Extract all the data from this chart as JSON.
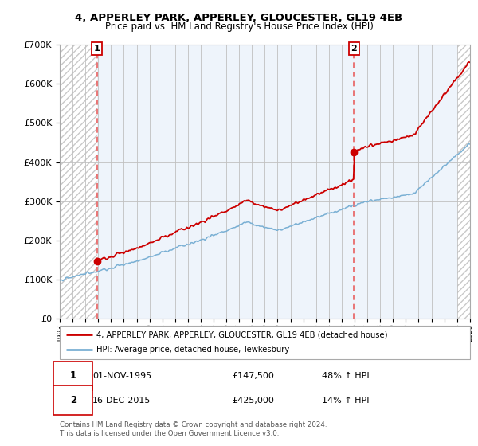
{
  "title1": "4, APPERLEY PARK, APPERLEY, GLOUCESTER, GL19 4EB",
  "title2": "Price paid vs. HM Land Registry's House Price Index (HPI)",
  "legend_line1": "4, APPERLEY PARK, APPERLEY, GLOUCESTER, GL19 4EB (detached house)",
  "legend_line2": "HPI: Average price, detached house, Tewkesbury",
  "annotation1_date": "01-NOV-1995",
  "annotation1_price": "£147,500",
  "annotation1_hpi": "48% ↑ HPI",
  "annotation2_date": "16-DEC-2015",
  "annotation2_price": "£425,000",
  "annotation2_hpi": "14% ↑ HPI",
  "footer": "Contains HM Land Registry data © Crown copyright and database right 2024.\nThis data is licensed under the Open Government Licence v3.0.",
  "sale1_year": 1995.9,
  "sale1_value": 147500,
  "sale2_year": 2015.96,
  "sale2_value": 425000,
  "hpi_color": "#7ab0d4",
  "price_color": "#cc0000",
  "vline_color": "#e86060",
  "ylim_max": 700000,
  "xlim_start": 1993.0,
  "xlim_end": 2025.0,
  "hatch_color": "#d8d8d8",
  "bg_white": "#ffffff",
  "bg_light_blue": "#eef4fb"
}
